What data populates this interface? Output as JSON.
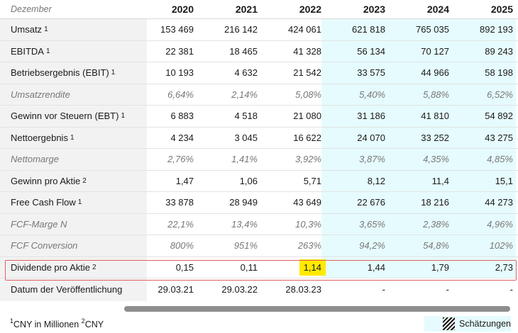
{
  "header": {
    "label": "Dezember",
    "years": [
      "2020",
      "2021",
      "2022",
      "2023",
      "2024",
      "2025"
    ]
  },
  "rows": [
    {
      "label": "Umsatz",
      "sup": "1",
      "values": [
        "153 469",
        "216 142",
        "424 061",
        "621 818",
        "765 035",
        "892 193"
      ]
    },
    {
      "label": "EBITDA",
      "sup": "1",
      "values": [
        "22 381",
        "18 465",
        "41 328",
        "56 134",
        "70 127",
        "89 243"
      ]
    },
    {
      "label": "Betriebsergebnis (EBIT)",
      "sup": "1",
      "values": [
        "10 193",
        "4 632",
        "21 542",
        "33 575",
        "44 966",
        "58 198"
      ]
    },
    {
      "label": "Umsatzrendite",
      "sup": "",
      "values": [
        "6,64%",
        "2,14%",
        "5,08%",
        "5,40%",
        "5,88%",
        "6,52%"
      ]
    },
    {
      "label": "Gewinn vor Steuern (EBT)",
      "sup": "1",
      "values": [
        "6 883",
        "4 518",
        "21 080",
        "31 186",
        "41 810",
        "54 892"
      ]
    },
    {
      "label": "Nettoergebnis",
      "sup": "1",
      "values": [
        "4 234",
        "3 045",
        "16 622",
        "24 070",
        "33 252",
        "43 275"
      ]
    },
    {
      "label": "Nettomarge",
      "sup": "",
      "values": [
        "2,76%",
        "1,41%",
        "3,92%",
        "3,87%",
        "4,35%",
        "4,85%"
      ]
    },
    {
      "label": "Gewinn pro Aktie",
      "sup": "2",
      "values": [
        "1,47",
        "1,06",
        "5,71",
        "8,12",
        "11,4",
        "15,1"
      ]
    },
    {
      "label": "Free Cash Flow",
      "sup": "1",
      "values": [
        "33 878",
        "28 949",
        "43 649",
        "22 676",
        "18 216",
        "44 273"
      ]
    },
    {
      "label": "FCF-Marge N",
      "sup": "",
      "values": [
        "22,1%",
        "13,4%",
        "10,3%",
        "3,65%",
        "2,38%",
        "4,96%"
      ]
    },
    {
      "label": "FCF Conversion",
      "sup": "",
      "values": [
        "800%",
        "951%",
        "263%",
        "94,2%",
        "54,8%",
        "102%"
      ]
    },
    {
      "label": "Dividende pro Aktie",
      "sup": "2",
      "values": [
        "0,15",
        "0,11",
        "1,14",
        "1,44",
        "1,79",
        "2,73"
      ]
    },
    {
      "label": "Datum der Veröffentlichung",
      "sup": "",
      "values": [
        "29.03.21",
        "29.03.22",
        "28.03.23",
        "-",
        "-",
        "-"
      ]
    }
  ],
  "footnote": {
    "sup1": "1",
    "text1": "CNY in Millionen ",
    "sup2": "2",
    "text2": "CNY"
  },
  "legend": {
    "label": "Schätzungen"
  },
  "colors": {
    "estimate_bg": "#e6fbfd",
    "highlight": "#ffea00",
    "highlight_border": "#e06060"
  }
}
